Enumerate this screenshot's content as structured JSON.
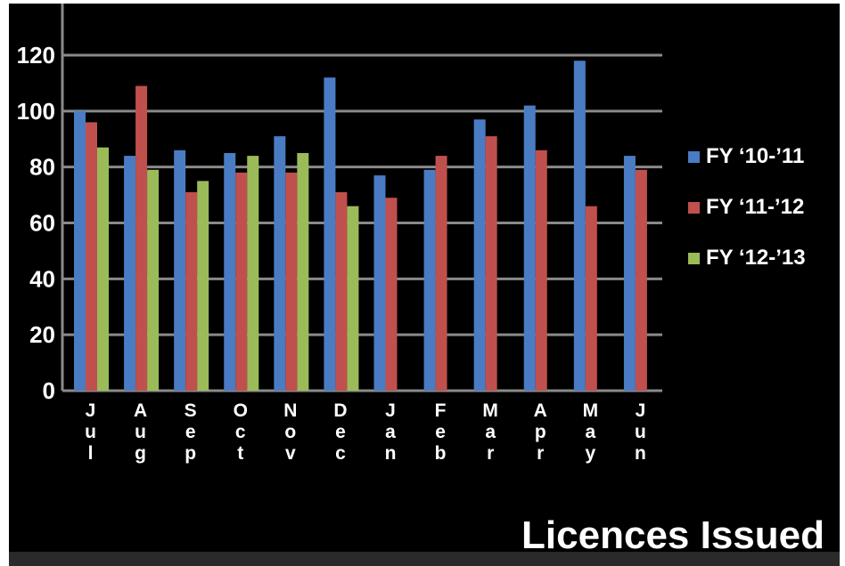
{
  "chart_data": {
    "type": "bar",
    "title": "Licences Issued",
    "xlabel": "",
    "ylabel": "",
    "categories": [
      "Jul",
      "Aug",
      "Sep",
      "Oct",
      "Nov",
      "Dec",
      "Jan",
      "Feb",
      "Mar",
      "Apr",
      "May",
      "Jun"
    ],
    "yticks": [
      "0",
      "20",
      "40",
      "60",
      "80",
      "100",
      "120"
    ],
    "ylim": [
      0,
      120
    ],
    "grid": true,
    "legend_position": "right",
    "series": [
      {
        "name": "FY ‘10-’11",
        "color": "#4a7cc4",
        "values": [
          100,
          84,
          86,
          85,
          91,
          112,
          77,
          79,
          97,
          102,
          118,
          84
        ]
      },
      {
        "name": "FY ‘11-’12",
        "color": "#c0504d",
        "values": [
          96,
          109,
          71,
          78,
          78,
          71,
          69,
          84,
          91,
          86,
          66,
          79
        ]
      },
      {
        "name": "FY ‘12-’13",
        "color": "#9bbb59",
        "values": [
          87,
          79,
          75,
          84,
          85,
          66,
          null,
          null,
          null,
          null,
          null,
          null
        ]
      }
    ]
  }
}
